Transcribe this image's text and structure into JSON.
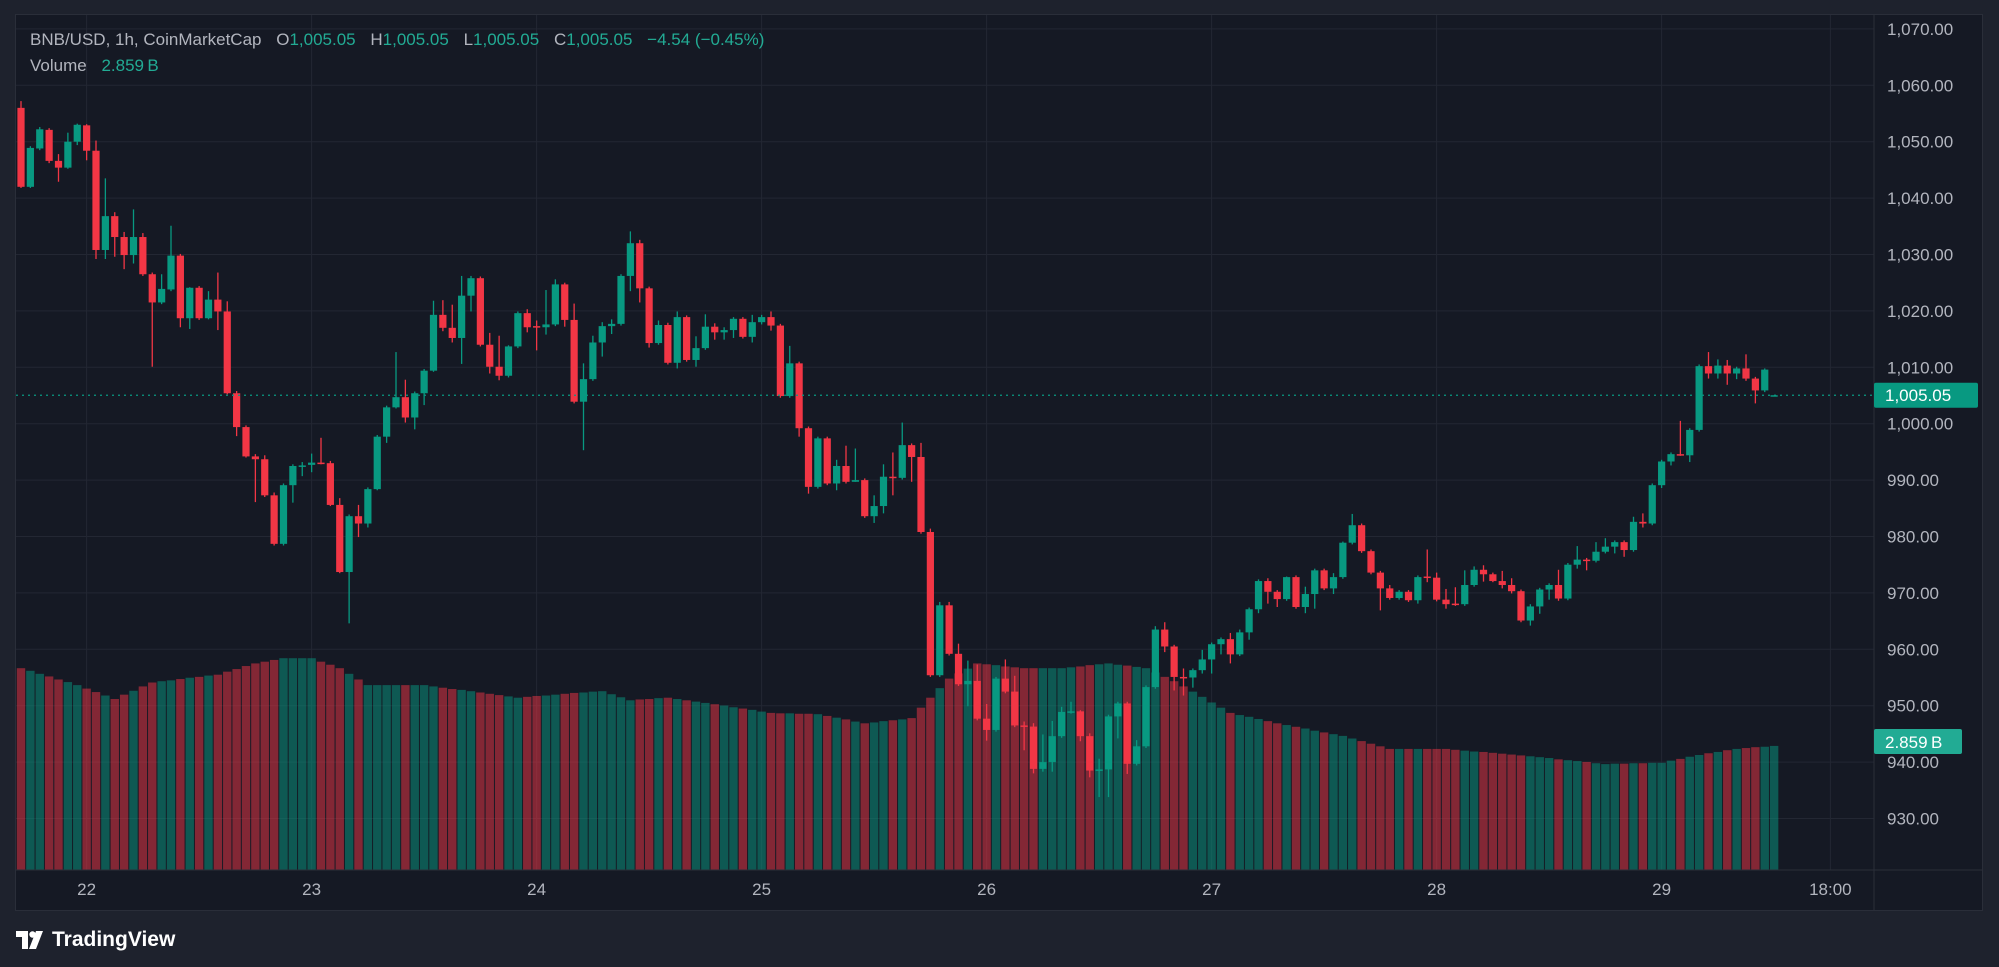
{
  "legend": {
    "symbol": "BNB/USD, 1h, CoinMarketCap",
    "open_label": "O",
    "open": "1,005.05",
    "high_label": "H",
    "high": "1,005.05",
    "low_label": "L",
    "low": "1,005.05",
    "close_label": "C",
    "close": "1,005.05",
    "change": "−4.54 (−0.45%)",
    "volume_label": "Volume",
    "volume": "2.859 B"
  },
  "branding": {
    "name": "TradingView"
  },
  "colors": {
    "up": "#089981",
    "down": "#f23645",
    "background": "#151924",
    "grid": "#232733",
    "axis_text": "#b2b5be"
  },
  "chart_data": {
    "type": "candlestick",
    "title": "BNB/USD, 1h, CoinMarketCap",
    "ylim": [
      924,
      1072
    ],
    "price_ticks": [
      1070,
      1060,
      1050,
      1040,
      1030,
      1020,
      1010,
      1000,
      990,
      980,
      970,
      960,
      950,
      940,
      930
    ],
    "price_tick_labels": [
      "1,070.00",
      "1,060.00",
      "1,050.00",
      "1,040.00",
      "1,030.00",
      "1,020.00",
      "1,010.00",
      "1,000.00",
      "990.00",
      "980.00",
      "970.00",
      "960.00",
      "950.00",
      "940.00",
      "930.00"
    ],
    "time_ticks": [
      {
        "label": "22",
        "index": 7
      },
      {
        "label": "23",
        "index": 31
      },
      {
        "label": "24",
        "index": 55
      },
      {
        "label": "25",
        "index": 79
      },
      {
        "label": "26",
        "index": 103
      },
      {
        "label": "27",
        "index": 127
      },
      {
        "label": "28",
        "index": 151
      },
      {
        "label": "29",
        "index": 175
      },
      {
        "label": "18:00",
        "index": 193
      }
    ],
    "last_price": 1005.05,
    "last_price_label": "1,005.05",
    "last_volume_label": "2.859 B",
    "candles_ohlc": [
      [
        1056.0,
        1057.2,
        1041.8,
        1042.0
      ],
      [
        1042.0,
        1049.2,
        1041.8,
        1048.9
      ],
      [
        1048.8,
        1052.6,
        1048.5,
        1052.2
      ],
      [
        1052.1,
        1052.4,
        1046.2,
        1046.6
      ],
      [
        1046.6,
        1047.8,
        1042.9,
        1045.4
      ],
      [
        1045.4,
        1051.6,
        1045.2,
        1050.0
      ],
      [
        1050.0,
        1053.2,
        1049.4,
        1053.0
      ],
      [
        1052.9,
        1053.1,
        1046.7,
        1048.4
      ],
      [
        1048.4,
        1050.2,
        1029.2,
        1030.8
      ],
      [
        1030.8,
        1043.5,
        1029.2,
        1036.8
      ],
      [
        1036.8,
        1037.5,
        1029.6,
        1033.1
      ],
      [
        1033.1,
        1034.0,
        1027.4,
        1029.9
      ],
      [
        1029.9,
        1038.0,
        1028.4,
        1033.1
      ],
      [
        1033.1,
        1033.8,
        1026.2,
        1026.5
      ],
      [
        1026.5,
        1026.8,
        1010.1,
        1021.5
      ],
      [
        1021.5,
        1026.5,
        1021.2,
        1023.9
      ],
      [
        1023.8,
        1035.1,
        1023.5,
        1029.8
      ],
      [
        1029.8,
        1030.1,
        1017.1,
        1018.7
      ],
      [
        1018.7,
        1024.2,
        1016.8,
        1024.1
      ],
      [
        1024.1,
        1024.4,
        1018.4,
        1018.7
      ],
      [
        1018.7,
        1023.5,
        1018.5,
        1022.0
      ],
      [
        1022.0,
        1026.8,
        1016.6,
        1019.9
      ],
      [
        1019.9,
        1021.7,
        1005.2,
        1005.4
      ],
      [
        1005.4,
        1005.8,
        997.8,
        999.4
      ],
      [
        999.4,
        999.7,
        994.0,
        994.2
      ],
      [
        994.2,
        994.6,
        986.1,
        993.7
      ],
      [
        993.7,
        994.4,
        987.0,
        987.3
      ],
      [
        987.3,
        987.8,
        978.4,
        978.7
      ],
      [
        978.7,
        989.4,
        978.4,
        989.1
      ],
      [
        989.1,
        992.8,
        986.0,
        992.5
      ],
      [
        992.5,
        993.2,
        990.7,
        992.6
      ],
      [
        992.7,
        994.7,
        991.4,
        993.1
      ],
      [
        993.1,
        997.5,
        992.8,
        993.0
      ],
      [
        993.0,
        993.4,
        985.4,
        985.6
      ],
      [
        985.6,
        986.8,
        973.5,
        973.7
      ],
      [
        973.7,
        983.9,
        964.6,
        983.6
      ],
      [
        983.6,
        985.6,
        979.9,
        982.3
      ],
      [
        982.3,
        988.7,
        981.6,
        988.4
      ],
      [
        988.4,
        998.0,
        988.2,
        997.7
      ],
      [
        997.7,
        1003.2,
        996.6,
        1002.9
      ],
      [
        1002.9,
        1012.7,
        1002.7,
        1004.7
      ],
      [
        1004.7,
        1007.8,
        1000.2,
        1001.1
      ],
      [
        1001.1,
        1005.7,
        999.0,
        1005.4
      ],
      [
        1005.4,
        1009.7,
        1003.3,
        1009.4
      ],
      [
        1009.4,
        1021.8,
        1009.2,
        1019.3
      ],
      [
        1019.3,
        1021.9,
        1016.4,
        1017.0
      ],
      [
        1017.0,
        1021.1,
        1014.4,
        1015.2
      ],
      [
        1015.2,
        1026.2,
        1010.6,
        1022.7
      ],
      [
        1022.7,
        1026.2,
        1019.9,
        1025.8
      ],
      [
        1025.8,
        1026.1,
        1013.7,
        1014.0
      ],
      [
        1014.0,
        1016.1,
        1008.9,
        1010.1
      ],
      [
        1010.1,
        1015.6,
        1007.7,
        1008.5
      ],
      [
        1008.5,
        1013.9,
        1008.2,
        1013.7
      ],
      [
        1013.7,
        1019.9,
        1013.4,
        1019.6
      ],
      [
        1019.6,
        1020.3,
        1016.2,
        1017.1
      ],
      [
        1017.3,
        1018.3,
        1013.0,
        1017.1
      ],
      [
        1017.1,
        1023.7,
        1015.8,
        1017.6
      ],
      [
        1017.6,
        1025.6,
        1017.3,
        1024.7
      ],
      [
        1024.7,
        1025.0,
        1017.2,
        1018.4
      ],
      [
        1018.4,
        1021.3,
        1003.6,
        1003.9
      ],
      [
        1003.9,
        1010.7,
        995.3,
        1007.9
      ],
      [
        1007.9,
        1015.6,
        1007.6,
        1014.4
      ],
      [
        1014.4,
        1018.0,
        1011.9,
        1017.3
      ],
      [
        1017.3,
        1018.5,
        1015.9,
        1017.7
      ],
      [
        1017.7,
        1026.5,
        1017.4,
        1026.2
      ],
      [
        1026.2,
        1034.1,
        1023.5,
        1032.0
      ],
      [
        1032.0,
        1032.6,
        1021.5,
        1024.0
      ],
      [
        1024.0,
        1024.3,
        1013.5,
        1014.3
      ],
      [
        1014.3,
        1018.3,
        1014.0,
        1017.5
      ],
      [
        1017.5,
        1017.9,
        1010.5,
        1010.8
      ],
      [
        1010.8,
        1019.9,
        1009.8,
        1018.9
      ],
      [
        1018.9,
        1019.2,
        1011.0,
        1011.3
      ],
      [
        1011.3,
        1015.5,
        1010.1,
        1013.4
      ],
      [
        1013.4,
        1019.4,
        1013.1,
        1017.2
      ],
      [
        1017.2,
        1017.8,
        1014.9,
        1016.2
      ],
      [
        1016.2,
        1017.1,
        1014.9,
        1016.6
      ],
      [
        1016.6,
        1018.9,
        1015.2,
        1018.6
      ],
      [
        1018.6,
        1018.9,
        1015.1,
        1015.4
      ],
      [
        1015.4,
        1019.3,
        1014.4,
        1018.0
      ],
      [
        1018.0,
        1019.3,
        1017.6,
        1018.9
      ],
      [
        1018.9,
        1019.9,
        1016.5,
        1017.4
      ],
      [
        1017.4,
        1017.7,
        1004.6,
        1004.9
      ],
      [
        1004.9,
        1013.8,
        1004.6,
        1010.7
      ],
      [
        1010.7,
        1011.0,
        997.7,
        999.2
      ],
      [
        999.2,
        999.5,
        987.6,
        988.8
      ],
      [
        988.8,
        997.7,
        988.5,
        997.4
      ],
      [
        997.4,
        997.7,
        989.1,
        989.4
      ],
      [
        989.4,
        993.6,
        988.2,
        992.5
      ],
      [
        992.5,
        996.1,
        989.4,
        989.7
      ],
      [
        989.7,
        995.6,
        989.7,
        990.0
      ],
      [
        990.0,
        990.3,
        983.3,
        983.6
      ],
      [
        983.6,
        987.3,
        982.4,
        985.4
      ],
      [
        985.4,
        992.8,
        984.1,
        990.6
      ],
      [
        990.6,
        994.9,
        987.3,
        990.4
      ],
      [
        990.4,
        1000.2,
        990.1,
        996.2
      ],
      [
        996.2,
        996.5,
        989.7,
        994.1
      ],
      [
        994.1,
        996.6,
        980.5,
        980.8
      ],
      [
        980.8,
        981.4,
        955.1,
        955.4
      ],
      [
        955.4,
        968.4,
        955.1,
        967.8
      ],
      [
        967.8,
        968.4,
        958.9,
        959.2
      ],
      [
        959.2,
        961.0,
        953.5,
        953.8
      ],
      [
        953.8,
        958.0,
        949.9,
        954.4
      ],
      [
        954.4,
        957.3,
        947.4,
        947.7
      ],
      [
        947.7,
        950.3,
        943.8,
        945.7
      ],
      [
        945.7,
        955.1,
        945.4,
        954.8
      ],
      [
        954.8,
        958.2,
        952.2,
        952.5
      ],
      [
        952.5,
        955.3,
        946.2,
        946.5
      ],
      [
        946.5,
        947.2,
        942.1,
        946.3
      ],
      [
        946.3,
        946.9,
        938.0,
        938.8
      ],
      [
        938.8,
        944.9,
        938.3,
        940.0
      ],
      [
        940.0,
        947.3,
        938.3,
        944.6
      ],
      [
        944.6,
        949.8,
        944.3,
        948.9
      ],
      [
        948.9,
        950.7,
        948.6,
        949.0
      ],
      [
        949.0,
        949.2,
        943.7,
        944.6
      ],
      [
        944.6,
        945.1,
        937.3,
        938.5
      ],
      [
        938.5,
        940.6,
        933.8,
        938.7
      ],
      [
        938.7,
        948.4,
        933.8,
        948.1
      ],
      [
        948.1,
        950.7,
        944.2,
        950.4
      ],
      [
        950.4,
        950.7,
        937.9,
        939.7
      ],
      [
        939.7,
        943.9,
        939.4,
        942.8
      ],
      [
        942.8,
        953.6,
        942.5,
        953.3
      ],
      [
        953.3,
        964.1,
        953.0,
        963.5
      ],
      [
        963.5,
        964.8,
        959.5,
        960.5
      ],
      [
        960.5,
        960.8,
        952.7,
        955.1
      ],
      [
        955.1,
        956.6,
        951.8,
        955.0
      ],
      [
        955.0,
        956.6,
        953.2,
        956.3
      ],
      [
        956.3,
        959.9,
        955.7,
        958.2
      ],
      [
        958.2,
        961.2,
        955.7,
        960.9
      ],
      [
        960.9,
        962.1,
        959.1,
        961.8
      ],
      [
        961.8,
        962.9,
        957.5,
        959.1
      ],
      [
        959.1,
        963.5,
        958.8,
        963.0
      ],
      [
        963.0,
        967.4,
        961.7,
        967.1
      ],
      [
        967.1,
        972.4,
        966.4,
        972.1
      ],
      [
        972.1,
        972.6,
        968.1,
        970.2
      ],
      [
        970.2,
        970.5,
        967.5,
        968.9
      ],
      [
        968.9,
        972.9,
        968.6,
        972.8
      ],
      [
        972.8,
        973.1,
        967.2,
        967.5
      ],
      [
        967.5,
        971.1,
        966.4,
        969.8
      ],
      [
        969.8,
        974.3,
        967.2,
        974.0
      ],
      [
        974.0,
        974.3,
        970.5,
        970.8
      ],
      [
        970.8,
        973.5,
        969.8,
        972.8
      ],
      [
        972.8,
        979.1,
        972.5,
        978.9
      ],
      [
        978.9,
        984.0,
        978.6,
        982.0
      ],
      [
        982.0,
        982.3,
        977.1,
        977.4
      ],
      [
        977.4,
        977.7,
        973.3,
        973.6
      ],
      [
        973.6,
        973.9,
        966.9,
        970.8
      ],
      [
        970.8,
        971.4,
        968.8,
        969.1
      ],
      [
        969.1,
        970.5,
        968.8,
        970.2
      ],
      [
        970.2,
        970.5,
        968.4,
        968.7
      ],
      [
        968.7,
        973.1,
        968.1,
        972.8
      ],
      [
        972.9,
        977.7,
        971.9,
        972.7
      ],
      [
        972.7,
        973.6,
        968.5,
        968.8
      ],
      [
        968.8,
        970.7,
        967.2,
        968.0
      ],
      [
        968.1,
        971.0,
        967.7,
        968.0
      ],
      [
        968.0,
        974.0,
        967.7,
        971.4
      ],
      [
        971.4,
        974.7,
        971.1,
        974.1
      ],
      [
        974.1,
        974.9,
        972.0,
        973.3
      ],
      [
        973.3,
        973.6,
        971.9,
        972.1
      ],
      [
        972.1,
        973.9,
        970.8,
        971.4
      ],
      [
        971.4,
        972.6,
        969.9,
        970.3
      ],
      [
        970.3,
        970.6,
        964.8,
        965.1
      ],
      [
        965.1,
        968.0,
        964.2,
        967.6
      ],
      [
        967.6,
        970.9,
        966.3,
        970.6
      ],
      [
        970.6,
        971.7,
        968.8,
        971.4
      ],
      [
        971.4,
        974.1,
        968.6,
        969.0
      ],
      [
        969.0,
        975.3,
        968.7,
        975.0
      ],
      [
        975.0,
        978.3,
        974.3,
        975.9
      ],
      [
        975.9,
        976.2,
        974.0,
        975.7
      ],
      [
        975.7,
        979.0,
        975.4,
        977.3
      ],
      [
        977.3,
        979.7,
        977.0,
        978.2
      ],
      [
        978.2,
        979.3,
        977.0,
        979.0
      ],
      [
        979.0,
        979.3,
        976.4,
        977.6
      ],
      [
        977.6,
        983.5,
        977.3,
        982.6
      ],
      [
        982.6,
        984.1,
        981.6,
        982.3
      ],
      [
        982.3,
        989.4,
        982.0,
        989.1
      ],
      [
        989.1,
        993.6,
        988.6,
        993.3
      ],
      [
        993.3,
        994.9,
        992.6,
        994.6
      ],
      [
        994.6,
        1000.5,
        994.3,
        994.4
      ],
      [
        994.4,
        999.2,
        993.2,
        998.9
      ],
      [
        998.9,
        1010.5,
        998.6,
        1010.2
      ],
      [
        1010.2,
        1012.7,
        1008.0,
        1008.9
      ],
      [
        1008.9,
        1011.4,
        1008.0,
        1010.3
      ],
      [
        1010.3,
        1011.3,
        1006.9,
        1008.9
      ],
      [
        1008.9,
        1010.1,
        1007.9,
        1009.8
      ],
      [
        1009.8,
        1012.3,
        1007.6,
        1008.0
      ],
      [
        1008.0,
        1008.3,
        1003.6,
        1005.9
      ],
      [
        1005.9,
        1009.8,
        1005.6,
        1009.59
      ],
      [
        1005.05,
        1005.05,
        1005.05,
        1005.05
      ]
    ],
    "volume_billions": [
      4.65,
      4.59,
      4.52,
      4.46,
      4.39,
      4.33,
      4.26,
      4.18,
      4.1,
      4.02,
      3.94,
      4.04,
      4.13,
      4.23,
      4.32,
      4.35,
      4.37,
      4.4,
      4.43,
      4.45,
      4.48,
      4.5,
      4.57,
      4.63,
      4.7,
      4.76,
      4.8,
      4.84,
      4.88,
      4.88,
      4.88,
      4.88,
      4.8,
      4.73,
      4.65,
      4.52,
      4.39,
      4.26,
      4.26,
      4.26,
      4.26,
      4.26,
      4.26,
      4.26,
      4.23,
      4.2,
      4.17,
      4.15,
      4.12,
      4.09,
      4.06,
      4.03,
      4.0,
      3.97,
      3.99,
      4.01,
      4.02,
      4.04,
      4.06,
      4.08,
      4.09,
      4.11,
      4.12,
      4.05,
      3.98,
      3.91,
      3.93,
      3.94,
      3.96,
      3.97,
      3.94,
      3.91,
      3.88,
      3.85,
      3.82,
      3.79,
      3.75,
      3.72,
      3.69,
      3.65,
      3.62,
      3.61,
      3.61,
      3.6,
      3.6,
      3.59,
      3.55,
      3.51,
      3.47,
      3.42,
      3.38,
      3.4,
      3.43,
      3.45,
      3.47,
      3.5,
      3.74,
      3.97,
      4.19,
      4.41,
      4.53,
      4.64,
      4.76,
      4.74,
      4.72,
      4.69,
      4.67,
      4.65,
      4.65,
      4.65,
      4.65,
      4.65,
      4.67,
      4.69,
      4.72,
      4.74,
      4.76,
      4.73,
      4.71,
      4.68,
      4.65,
      4.55,
      4.45,
      4.35,
      4.23,
      4.11,
      3.99,
      3.86,
      3.74,
      3.62,
      3.57,
      3.53,
      3.48,
      3.43,
      3.38,
      3.34,
      3.3,
      3.26,
      3.21,
      3.17,
      3.13,
      3.09,
      3.03,
      2.97,
      2.91,
      2.85,
      2.79,
      2.79,
      2.79,
      2.79,
      2.79,
      2.79,
      2.79,
      2.77,
      2.75,
      2.73,
      2.72,
      2.7,
      2.68,
      2.66,
      2.64,
      2.62,
      2.6,
      2.58,
      2.55,
      2.53,
      2.51,
      2.49,
      2.46,
      2.44,
      2.45,
      2.45,
      2.46,
      2.46,
      2.47,
      2.47,
      2.52,
      2.56,
      2.61,
      2.65,
      2.69,
      2.72,
      2.76,
      2.79,
      2.81,
      2.83,
      2.84,
      2.859
    ]
  }
}
